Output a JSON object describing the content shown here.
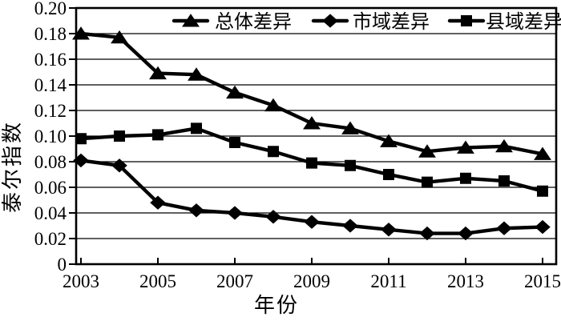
{
  "figure": {
    "background": "#ffffff",
    "ink_color": "#000000"
  },
  "chart_data": {
    "type": "line",
    "title": "",
    "xlabel": "年份",
    "ylabel": "泰尔指数",
    "x": [
      2003,
      2004,
      2005,
      2006,
      2007,
      2008,
      2009,
      2010,
      2011,
      2012,
      2013,
      2014,
      2015
    ],
    "series": [
      {
        "id": "overall",
        "label": "总体差异",
        "marker": "triangle",
        "color": "#000000",
        "values": [
          0.18,
          0.177,
          0.149,
          0.148,
          0.134,
          0.124,
          0.11,
          0.106,
          0.096,
          0.088,
          0.091,
          0.092,
          0.086
        ]
      },
      {
        "id": "city",
        "label": "市域差异",
        "marker": "diamond",
        "color": "#000000",
        "values": [
          0.081,
          0.077,
          0.048,
          0.042,
          0.04,
          0.037,
          0.033,
          0.03,
          0.027,
          0.024,
          0.024,
          0.028,
          0.029
        ]
      },
      {
        "id": "county",
        "label": "县域差异",
        "marker": "square",
        "color": "#000000",
        "values": [
          0.098,
          0.1,
          0.101,
          0.106,
          0.095,
          0.088,
          0.079,
          0.077,
          0.07,
          0.064,
          0.067,
          0.065,
          0.057
        ]
      }
    ],
    "ylim": [
      0,
      0.2
    ],
    "y_tick_labels": [
      "0.20",
      "0.18",
      "0.16",
      "0.14",
      "0.12",
      "0.10",
      "0.08",
      "0.06",
      "0.04",
      "0.02",
      "0"
    ],
    "x_tick_labels": [
      "2003",
      "2005",
      "2007",
      "2009",
      "2011",
      "2013",
      "2015"
    ],
    "grid": "horizontal",
    "legend_position": "top"
  }
}
